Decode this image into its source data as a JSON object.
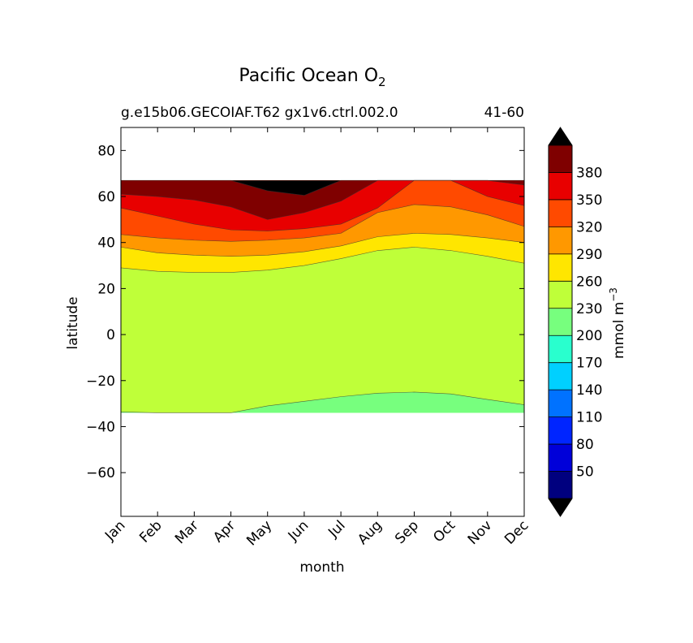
{
  "chart_data": {
    "type": "heatmap",
    "title": "Pacific Ocean O",
    "title_subscript": "2",
    "subtitle_left": "g.e15b06.GECOIAF.T62 gx1v6.ctrl.002.0",
    "subtitle_right": "41-60",
    "xlabel": "month",
    "ylabel": "latitude",
    "x_ticks": [
      "Jan",
      "Feb",
      "Mar",
      "Apr",
      "May",
      "Jun",
      "Jul",
      "Aug",
      "Sep",
      "Oct",
      "Nov",
      "Dec"
    ],
    "y_ticks": [
      "80",
      "60",
      "40",
      "20",
      "0",
      "−20",
      "−40",
      "−60"
    ],
    "y_tick_values": [
      80,
      60,
      40,
      20,
      0,
      -20,
      -40,
      -60
    ],
    "ylim": [
      -79,
      90
    ],
    "data_lat_range": [
      -34,
      67
    ],
    "colorbar": {
      "label": "mmol m",
      "label_sup": "−3",
      "tick_labels": [
        "380",
        "350",
        "320",
        "290",
        "260",
        "230",
        "200",
        "170",
        "140",
        "110",
        "80",
        "50"
      ],
      "levels": [
        20,
        50,
        80,
        110,
        140,
        170,
        200,
        230,
        260,
        290,
        320,
        350,
        380,
        410
      ],
      "colors": [
        "#00007f",
        "#0000d9",
        "#0025ff",
        "#0072ff",
        "#00d0ff",
        "#29ffce",
        "#77ff7e",
        "#bfff39",
        "#ffe600",
        "#ff9800",
        "#ff4a00",
        "#e80000",
        "#7f0000"
      ],
      "under_color": "#000000",
      "over_color": "#000000"
    },
    "contour_boundaries": [
      {
        "level": 230,
        "lat": [
          -33.6,
          -34,
          -34,
          -34,
          -31,
          -29,
          -27,
          -25.5,
          -25,
          -25.8,
          -28.2,
          -30.5
        ]
      },
      {
        "level": 260,
        "lat": [
          29,
          27.5,
          27,
          27,
          28,
          30,
          33,
          36.5,
          38,
          36.5,
          34,
          31
        ]
      },
      {
        "level": 290,
        "lat": [
          38,
          35.5,
          34.5,
          34,
          34.5,
          36,
          38.5,
          42.5,
          44,
          43.5,
          42,
          40
        ]
      },
      {
        "level": 320,
        "lat": [
          43.5,
          42,
          41,
          40.5,
          41,
          42,
          44,
          53,
          56.5,
          55.5,
          52,
          47
        ]
      },
      {
        "level": 350,
        "lat": [
          55,
          51.5,
          48,
          45.5,
          45,
          46,
          48,
          55,
          67,
          67,
          60,
          56
        ]
      },
      {
        "level": 380,
        "lat": [
          61,
          60,
          58.5,
          55.5,
          50,
          53,
          58,
          67,
          67,
          67,
          67,
          65
        ]
      },
      {
        "level": 410,
        "lat": [
          67,
          67,
          67,
          67,
          62.5,
          60.5,
          67,
          67,
          67,
          67,
          67,
          67
        ]
      }
    ]
  }
}
